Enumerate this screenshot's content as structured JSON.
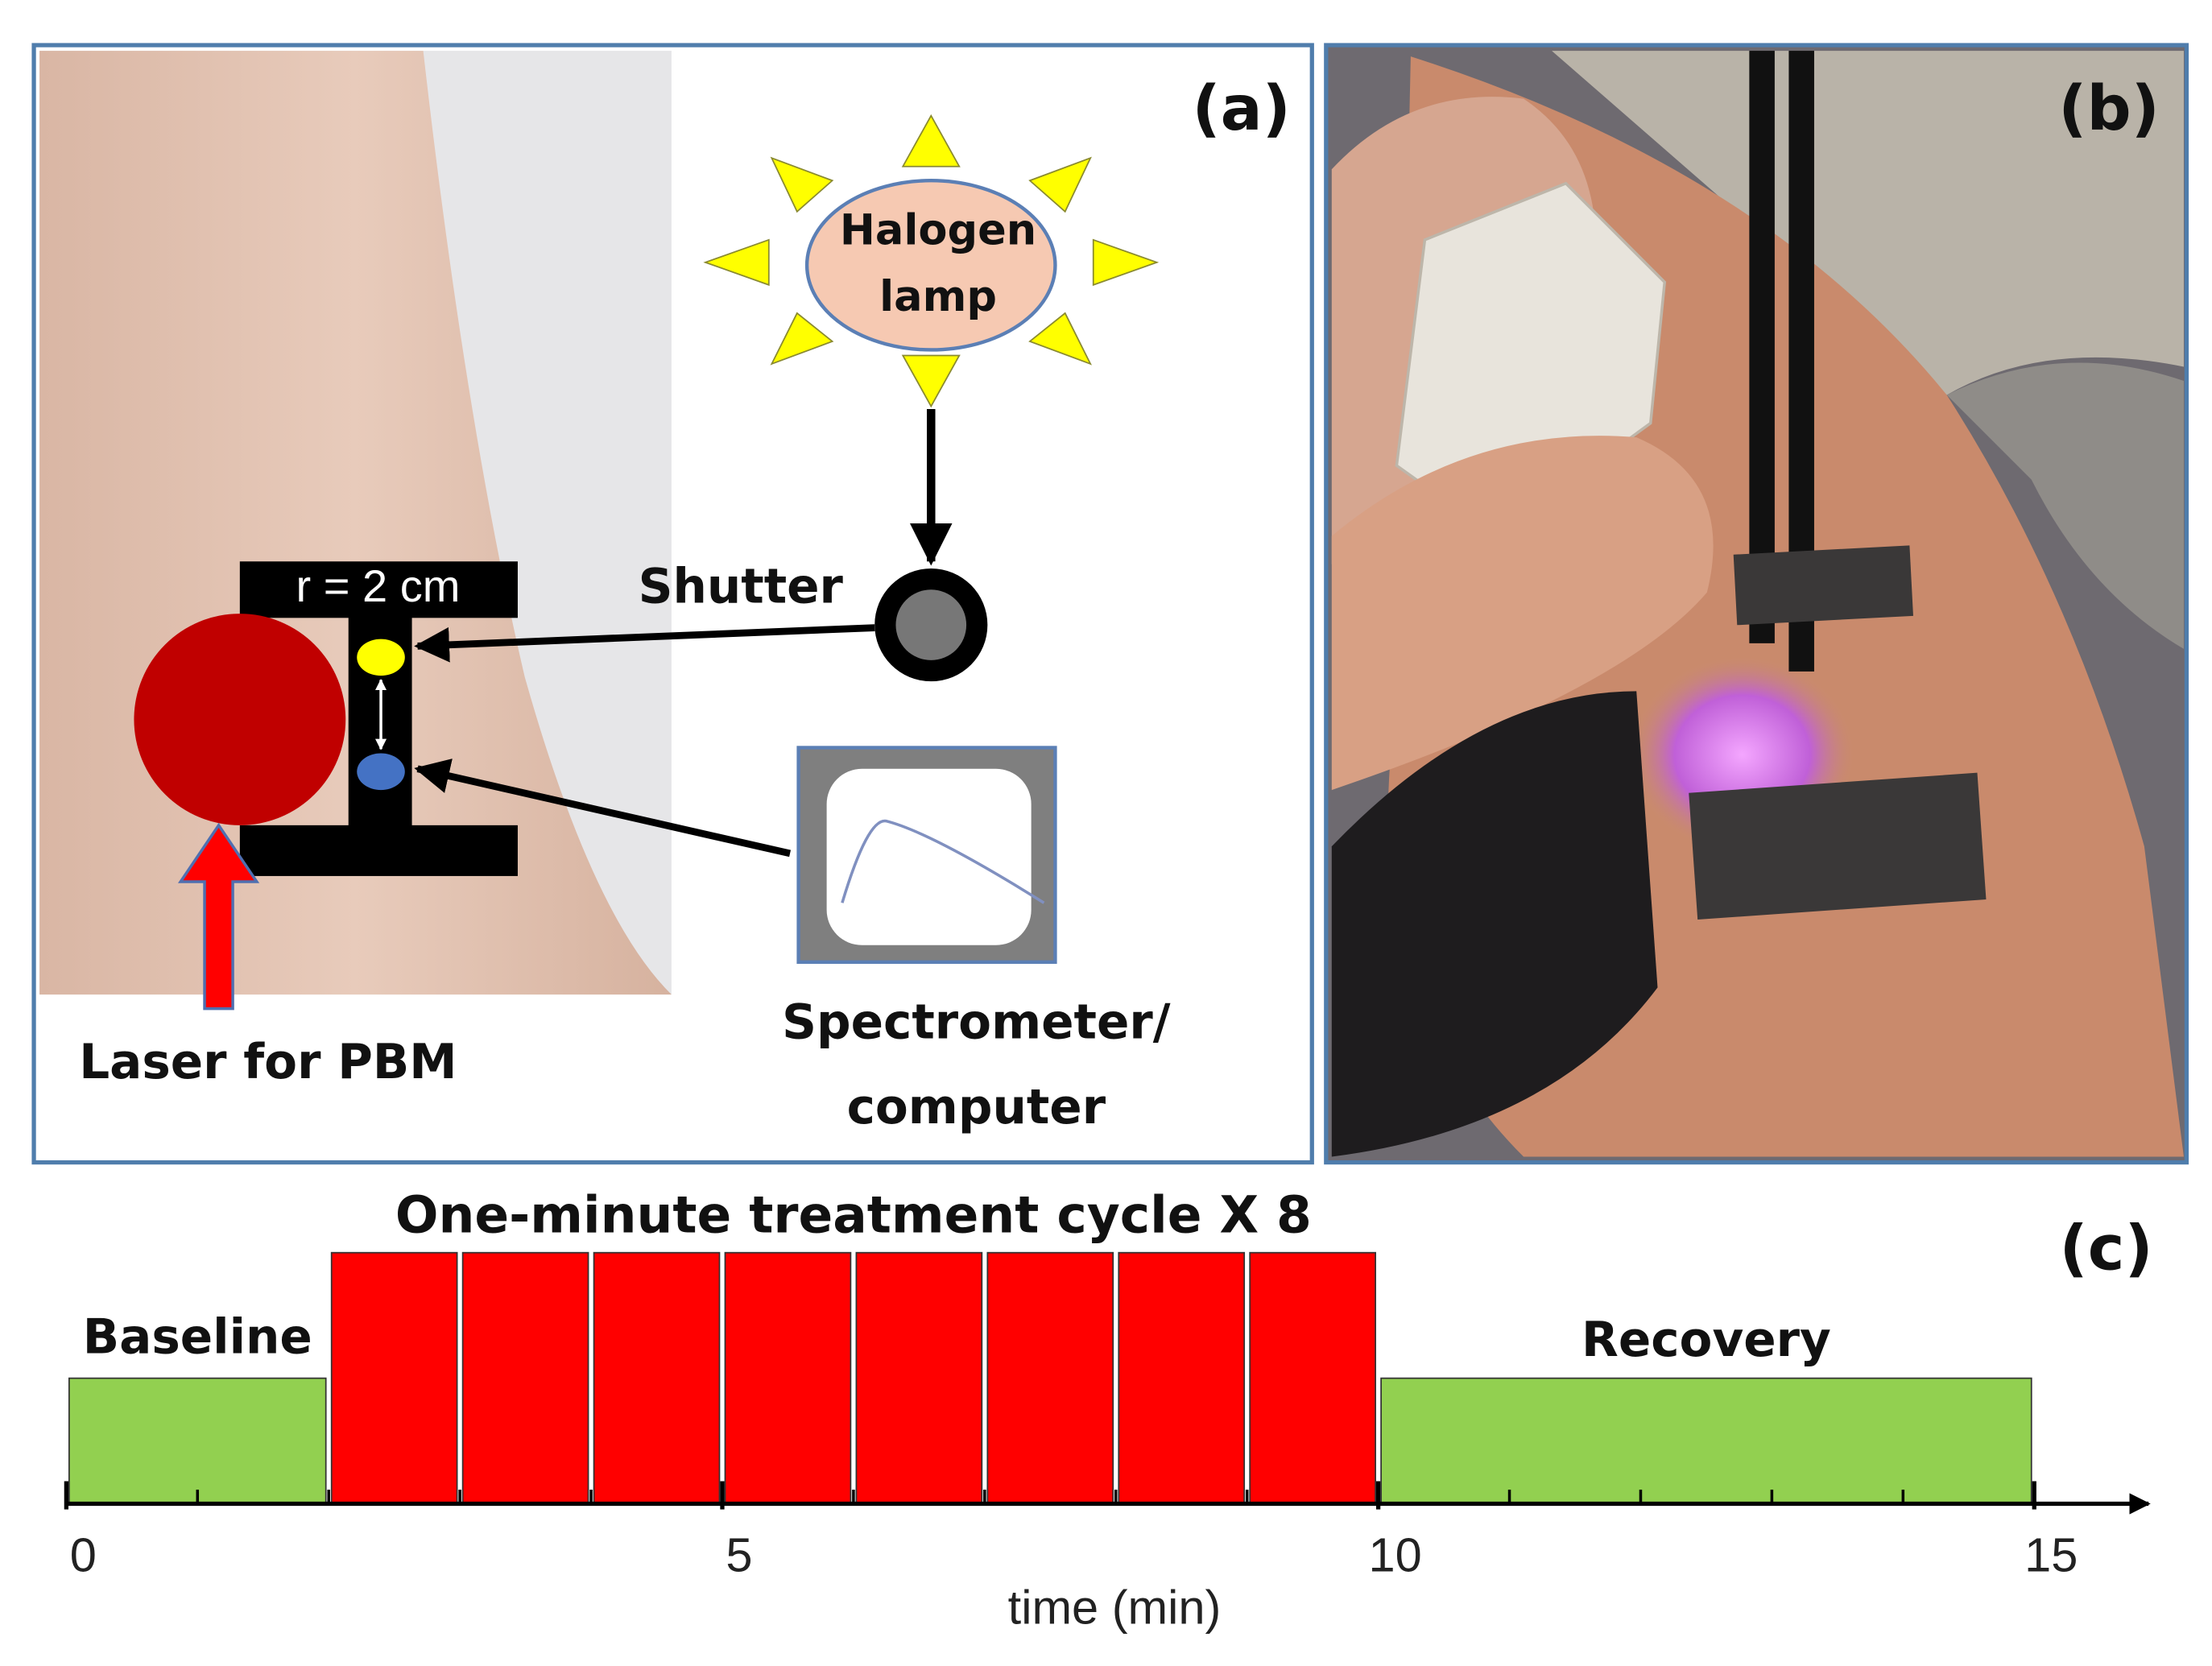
{
  "panel_a": {
    "label": "(a)",
    "lamp": [
      "Halogen",
      "lamp"
    ],
    "shutter": "Shutter",
    "probe_size": "r = 2 cm",
    "laser": "Laser for PBM",
    "spectrometer": [
      "Spectrometer/",
      "computer"
    ]
  },
  "panel_b": {
    "label": "(b)"
  },
  "panel_c": {
    "label": "(c)",
    "axis_title": "time (min)",
    "xlim": [
      0,
      16
    ],
    "xticks": [
      0,
      5,
      10,
      15
    ],
    "phases": [
      {
        "label": "Baseline",
        "start": 0,
        "end": 2
      },
      {
        "label": "One-minute treatment cycle X 8",
        "start": 2,
        "end": 10,
        "cycles": 8
      },
      {
        "label": "Recovery",
        "start": 10,
        "end": 15
      }
    ]
  }
}
